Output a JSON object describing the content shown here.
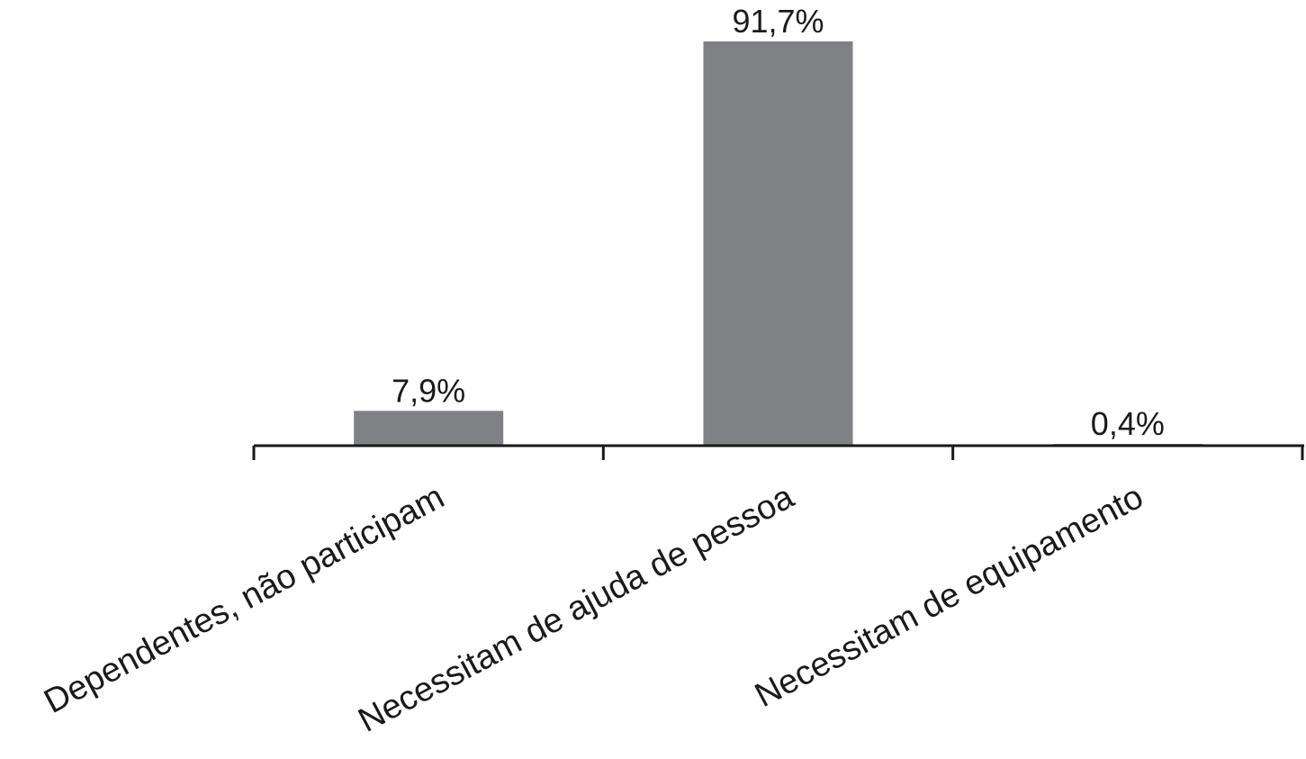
{
  "chart_data": {
    "type": "bar",
    "categories": [
      "Dependentes, não participam",
      "Necessitam de  ajuda de pessoa",
      "Necessitam de  equipamento"
    ],
    "values": [
      7.9,
      91.7,
      0.4
    ],
    "value_labels": [
      "7,9%",
      "91,7%",
      "0,4%"
    ],
    "color": "#808184"
  }
}
